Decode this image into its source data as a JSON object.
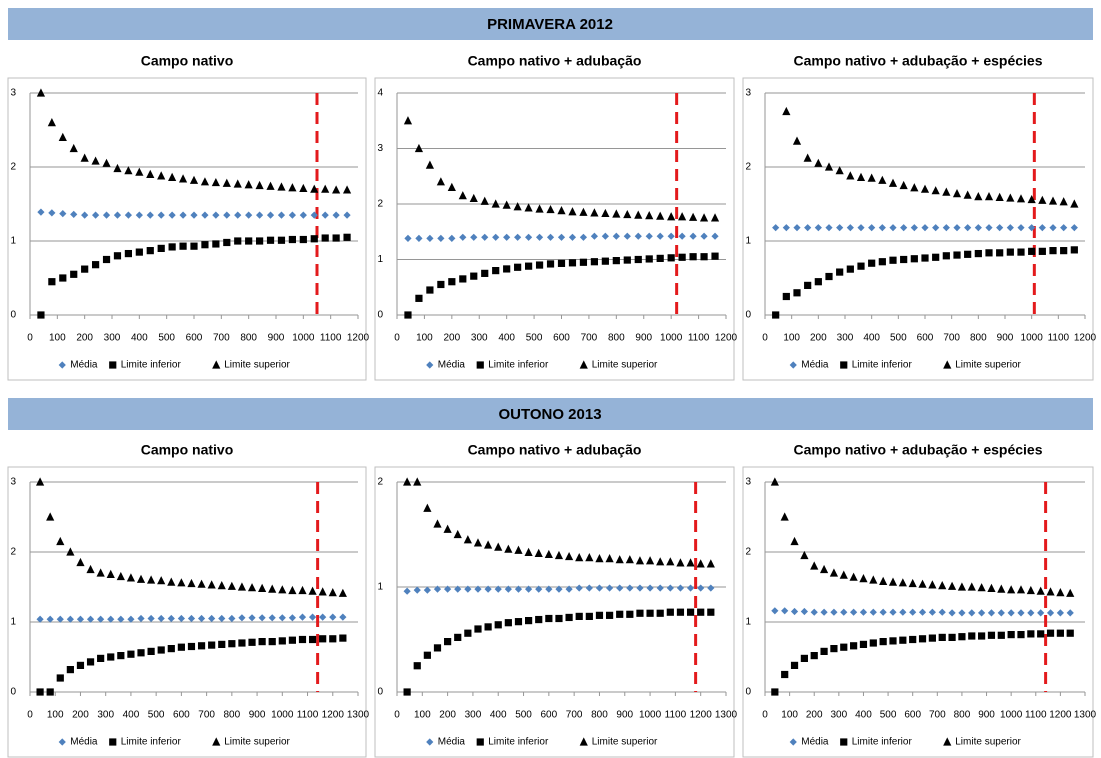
{
  "sections": [
    "PRIMAVERA 2012",
    "OUTONO 2013"
  ],
  "chart_data": [
    {
      "type": "scatter",
      "title": "Campo nativo",
      "grid": true,
      "x": [
        40,
        80,
        120,
        160,
        200,
        240,
        280,
        320,
        360,
        400,
        440,
        480,
        520,
        560,
        600,
        640,
        680,
        720,
        760,
        800,
        840,
        880,
        920,
        960,
        1000,
        1040,
        1080,
        1120,
        1160
      ],
      "xlim": [
        0,
        1200
      ],
      "xticks": [
        0,
        100,
        200,
        300,
        400,
        500,
        600,
        700,
        800,
        900,
        1000,
        1100,
        1200
      ],
      "ylim": [
        0,
        3
      ],
      "yticks": [
        0,
        1,
        2,
        3
      ],
      "vline": 1050,
      "series": [
        {
          "name": "Média",
          "color": "#4f81bd",
          "marker": "diamond",
          "values": [
            1.39,
            1.38,
            1.37,
            1.36,
            1.35,
            1.35,
            1.35,
            1.35,
            1.35,
            1.35,
            1.35,
            1.35,
            1.35,
            1.35,
            1.35,
            1.35,
            1.35,
            1.35,
            1.35,
            1.35,
            1.35,
            1.35,
            1.35,
            1.35,
            1.35,
            1.35,
            1.35,
            1.35,
            1.35
          ]
        },
        {
          "name": "Limite inferior",
          "color": "#000000",
          "marker": "square",
          "values": [
            0,
            0.45,
            0.5,
            0.55,
            0.62,
            0.68,
            0.75,
            0.8,
            0.83,
            0.85,
            0.87,
            0.9,
            0.92,
            0.93,
            0.93,
            0.95,
            0.96,
            0.98,
            1.0,
            1.0,
            1.0,
            1.01,
            1.01,
            1.02,
            1.02,
            1.03,
            1.04,
            1.04,
            1.05
          ]
        },
        {
          "name": "Limite superior",
          "color": "#000000",
          "marker": "triangle",
          "values": [
            3.0,
            2.6,
            2.4,
            2.25,
            2.12,
            2.08,
            2.05,
            1.98,
            1.95,
            1.93,
            1.9,
            1.88,
            1.86,
            1.84,
            1.82,
            1.8,
            1.79,
            1.78,
            1.77,
            1.76,
            1.75,
            1.74,
            1.73,
            1.72,
            1.71,
            1.7,
            1.7,
            1.69,
            1.69
          ]
        }
      ]
    },
    {
      "type": "scatter",
      "title": "Campo nativo + adubação",
      "grid": true,
      "x": [
        40,
        80,
        120,
        160,
        200,
        240,
        280,
        320,
        360,
        400,
        440,
        480,
        520,
        560,
        600,
        640,
        680,
        720,
        760,
        800,
        840,
        880,
        920,
        960,
        1000,
        1040,
        1080,
        1120,
        1160
      ],
      "xlim": [
        0,
        1200
      ],
      "xticks": [
        0,
        100,
        200,
        300,
        400,
        500,
        600,
        700,
        800,
        900,
        1000,
        1100,
        1200
      ],
      "ylim": [
        0,
        4
      ],
      "yticks": [
        0,
        1,
        2,
        3,
        4
      ],
      "vline": 1020,
      "series": [
        {
          "name": "Média",
          "color": "#4f81bd",
          "marker": "diamond",
          "values": [
            1.38,
            1.38,
            1.38,
            1.38,
            1.38,
            1.4,
            1.4,
            1.4,
            1.4,
            1.4,
            1.4,
            1.4,
            1.4,
            1.4,
            1.4,
            1.4,
            1.4,
            1.42,
            1.42,
            1.42,
            1.42,
            1.42,
            1.42,
            1.42,
            1.42,
            1.42,
            1.42,
            1.42,
            1.42
          ]
        },
        {
          "name": "Limite inferior",
          "color": "#000000",
          "marker": "square",
          "values": [
            0,
            0.3,
            0.45,
            0.55,
            0.6,
            0.65,
            0.7,
            0.75,
            0.8,
            0.83,
            0.86,
            0.88,
            0.9,
            0.92,
            0.93,
            0.94,
            0.95,
            0.96,
            0.97,
            0.98,
            0.99,
            1.0,
            1.01,
            1.02,
            1.03,
            1.04,
            1.05,
            1.05,
            1.06
          ]
        },
        {
          "name": "Limite superior",
          "color": "#000000",
          "marker": "triangle",
          "values": [
            3.5,
            3.0,
            2.7,
            2.4,
            2.3,
            2.15,
            2.1,
            2.05,
            2.0,
            1.98,
            1.95,
            1.93,
            1.91,
            1.9,
            1.88,
            1.86,
            1.85,
            1.84,
            1.83,
            1.82,
            1.81,
            1.8,
            1.79,
            1.78,
            1.77,
            1.77,
            1.76,
            1.75,
            1.75
          ]
        }
      ]
    },
    {
      "type": "scatter",
      "title": "Campo nativo + adubação + espécies",
      "grid": true,
      "x": [
        40,
        80,
        120,
        160,
        200,
        240,
        280,
        320,
        360,
        400,
        440,
        480,
        520,
        560,
        600,
        640,
        680,
        720,
        760,
        800,
        840,
        880,
        920,
        960,
        1000,
        1040,
        1080,
        1120,
        1160
      ],
      "xlim": [
        0,
        1200
      ],
      "xticks": [
        0,
        100,
        200,
        300,
        400,
        500,
        600,
        700,
        800,
        900,
        1000,
        1100,
        1200
      ],
      "ylim": [
        0,
        3
      ],
      "yticks": [
        0,
        1,
        2,
        3
      ],
      "vline": 1010,
      "series": [
        {
          "name": "Média",
          "color": "#4f81bd",
          "marker": "diamond",
          "values": [
            1.18,
            1.18,
            1.18,
            1.18,
            1.18,
            1.18,
            1.18,
            1.18,
            1.18,
            1.18,
            1.18,
            1.18,
            1.18,
            1.18,
            1.18,
            1.18,
            1.18,
            1.18,
            1.18,
            1.18,
            1.18,
            1.18,
            1.18,
            1.18,
            1.18,
            1.18,
            1.18,
            1.18,
            1.18
          ]
        },
        {
          "name": "Limite inferior",
          "color": "#000000",
          "marker": "square",
          "values": [
            0,
            0.25,
            0.3,
            0.4,
            0.45,
            0.52,
            0.58,
            0.62,
            0.66,
            0.7,
            0.72,
            0.74,
            0.75,
            0.76,
            0.77,
            0.78,
            0.8,
            0.81,
            0.82,
            0.83,
            0.84,
            0.84,
            0.85,
            0.85,
            0.86,
            0.86,
            0.87,
            0.87,
            0.88
          ]
        },
        {
          "name": "Limite superior",
          "color": "#000000",
          "marker": "triangle",
          "values": [
            null,
            2.75,
            2.35,
            2.12,
            2.05,
            2.0,
            1.95,
            1.88,
            1.86,
            1.85,
            1.82,
            1.78,
            1.75,
            1.72,
            1.7,
            1.68,
            1.66,
            1.64,
            1.62,
            1.6,
            1.6,
            1.59,
            1.58,
            1.57,
            1.56,
            1.55,
            1.54,
            1.53,
            1.5
          ]
        }
      ]
    },
    {
      "type": "scatter",
      "title": "Campo nativo",
      "grid": true,
      "x": [
        40,
        80,
        120,
        160,
        200,
        240,
        280,
        320,
        360,
        400,
        440,
        480,
        520,
        560,
        600,
        640,
        680,
        720,
        760,
        800,
        840,
        880,
        920,
        960,
        1000,
        1040,
        1080,
        1120,
        1160,
        1200,
        1240
      ],
      "xlim": [
        0,
        1300
      ],
      "xticks": [
        0,
        100,
        200,
        300,
        400,
        500,
        600,
        700,
        800,
        900,
        1000,
        1100,
        1200,
        1300
      ],
      "ylim": [
        0,
        3
      ],
      "yticks": [
        0,
        1,
        2,
        3
      ],
      "vline": 1140,
      "series": [
        {
          "name": "Média",
          "color": "#4f81bd",
          "marker": "diamond",
          "values": [
            1.04,
            1.04,
            1.04,
            1.04,
            1.04,
            1.04,
            1.04,
            1.04,
            1.04,
            1.04,
            1.05,
            1.05,
            1.05,
            1.05,
            1.05,
            1.05,
            1.05,
            1.05,
            1.05,
            1.05,
            1.06,
            1.06,
            1.06,
            1.06,
            1.06,
            1.06,
            1.07,
            1.07,
            1.07,
            1.07,
            1.07
          ]
        },
        {
          "name": "Limite inferior",
          "color": "#000000",
          "marker": "square",
          "values": [
            0,
            0,
            0.2,
            0.32,
            0.38,
            0.43,
            0.48,
            0.5,
            0.52,
            0.54,
            0.56,
            0.58,
            0.6,
            0.62,
            0.64,
            0.65,
            0.66,
            0.67,
            0.68,
            0.69,
            0.7,
            0.71,
            0.72,
            0.72,
            0.73,
            0.74,
            0.75,
            0.75,
            0.76,
            0.76,
            0.77
          ]
        },
        {
          "name": "Limite superior",
          "color": "#000000",
          "marker": "triangle",
          "values": [
            3.0,
            2.5,
            2.15,
            2.0,
            1.85,
            1.75,
            1.7,
            1.68,
            1.65,
            1.63,
            1.61,
            1.6,
            1.59,
            1.57,
            1.56,
            1.55,
            1.54,
            1.53,
            1.52,
            1.51,
            1.5,
            1.49,
            1.48,
            1.47,
            1.46,
            1.45,
            1.45,
            1.44,
            1.43,
            1.42,
            1.41
          ]
        }
      ]
    },
    {
      "type": "scatter",
      "title": "Campo nativo + adubação",
      "grid": true,
      "x": [
        40,
        80,
        120,
        160,
        200,
        240,
        280,
        320,
        360,
        400,
        440,
        480,
        520,
        560,
        600,
        640,
        680,
        720,
        760,
        800,
        840,
        880,
        920,
        960,
        1000,
        1040,
        1080,
        1120,
        1160,
        1200,
        1240
      ],
      "xlim": [
        0,
        1300
      ],
      "xticks": [
        0,
        100,
        200,
        300,
        400,
        500,
        600,
        700,
        800,
        900,
        1000,
        1100,
        1200,
        1300
      ],
      "ylim": [
        0,
        2
      ],
      "yticks": [
        0,
        1,
        2
      ],
      "vline": 1180,
      "series": [
        {
          "name": "Média",
          "color": "#4f81bd",
          "marker": "diamond",
          "values": [
            0.96,
            0.97,
            0.97,
            0.98,
            0.98,
            0.98,
            0.98,
            0.98,
            0.98,
            0.98,
            0.98,
            0.98,
            0.98,
            0.98,
            0.98,
            0.98,
            0.98,
            0.99,
            0.99,
            0.99,
            0.99,
            0.99,
            0.99,
            0.99,
            0.99,
            0.99,
            0.99,
            0.99,
            0.99,
            0.99,
            0.99
          ]
        },
        {
          "name": "Limite inferior",
          "color": "#000000",
          "marker": "square",
          "values": [
            0,
            0.25,
            0.35,
            0.42,
            0.48,
            0.52,
            0.56,
            0.6,
            0.62,
            0.64,
            0.66,
            0.67,
            0.68,
            0.69,
            0.7,
            0.7,
            0.71,
            0.72,
            0.72,
            0.73,
            0.73,
            0.74,
            0.74,
            0.75,
            0.75,
            0.75,
            0.76,
            0.76,
            0.76,
            0.76,
            0.76
          ]
        },
        {
          "name": "Limite superior",
          "color": "#000000",
          "marker": "triangle",
          "values": [
            2.0,
            2.0,
            1.75,
            1.6,
            1.55,
            1.5,
            1.45,
            1.42,
            1.4,
            1.38,
            1.36,
            1.35,
            1.33,
            1.32,
            1.31,
            1.3,
            1.29,
            1.28,
            1.28,
            1.27,
            1.27,
            1.26,
            1.26,
            1.25,
            1.25,
            1.24,
            1.24,
            1.23,
            1.23,
            1.22,
            1.22
          ]
        }
      ]
    },
    {
      "type": "scatter",
      "title": "Campo nativo + adubação + espécies",
      "grid": true,
      "x": [
        40,
        80,
        120,
        160,
        200,
        240,
        280,
        320,
        360,
        400,
        440,
        480,
        520,
        560,
        600,
        640,
        680,
        720,
        760,
        800,
        840,
        880,
        920,
        960,
        1000,
        1040,
        1080,
        1120,
        1160,
        1200,
        1240
      ],
      "xlim": [
        0,
        1300
      ],
      "xticks": [
        0,
        100,
        200,
        300,
        400,
        500,
        600,
        700,
        800,
        900,
        1000,
        1100,
        1200,
        1300
      ],
      "ylim": [
        0,
        3
      ],
      "yticks": [
        0,
        1,
        2,
        3
      ],
      "vline": 1140,
      "series": [
        {
          "name": "Média",
          "color": "#4f81bd",
          "marker": "diamond",
          "values": [
            1.16,
            1.16,
            1.15,
            1.15,
            1.14,
            1.14,
            1.14,
            1.14,
            1.14,
            1.14,
            1.14,
            1.14,
            1.14,
            1.14,
            1.14,
            1.14,
            1.14,
            1.14,
            1.13,
            1.13,
            1.13,
            1.13,
            1.13,
            1.13,
            1.13,
            1.13,
            1.13,
            1.13,
            1.13,
            1.13,
            1.13
          ]
        },
        {
          "name": "Limite inferior",
          "color": "#000000",
          "marker": "square",
          "values": [
            0,
            0.25,
            0.38,
            0.48,
            0.52,
            0.58,
            0.62,
            0.64,
            0.66,
            0.68,
            0.7,
            0.72,
            0.73,
            0.74,
            0.75,
            0.76,
            0.77,
            0.78,
            0.78,
            0.79,
            0.8,
            0.8,
            0.81,
            0.81,
            0.82,
            0.82,
            0.83,
            0.83,
            0.84,
            0.84,
            0.84
          ]
        },
        {
          "name": "Limite superior",
          "color": "#000000",
          "marker": "triangle",
          "values": [
            3.0,
            2.5,
            2.15,
            1.95,
            1.8,
            1.75,
            1.7,
            1.67,
            1.64,
            1.62,
            1.6,
            1.58,
            1.57,
            1.56,
            1.55,
            1.54,
            1.53,
            1.52,
            1.51,
            1.5,
            1.5,
            1.49,
            1.48,
            1.47,
            1.46,
            1.46,
            1.45,
            1.44,
            1.43,
            1.42,
            1.41
          ]
        }
      ]
    }
  ]
}
